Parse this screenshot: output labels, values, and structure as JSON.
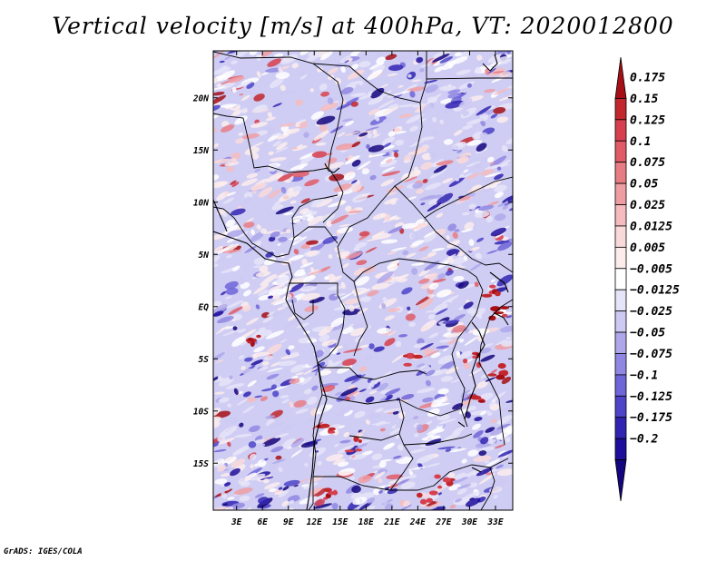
{
  "chart_data": {
    "type": "heatmap",
    "title": "Vertical velocity [m/s] at 400hPa, VT: 2020012800",
    "variable": "Vertical velocity",
    "units": "m/s",
    "level": "400hPa",
    "valid_time": "2020012800",
    "x_ticks": [
      "3E",
      "6E",
      "9E",
      "12E",
      "15E",
      "18E",
      "21E",
      "24E",
      "27E",
      "30E",
      "33E"
    ],
    "x_values": [
      3,
      6,
      9,
      12,
      15,
      18,
      21,
      24,
      27,
      30,
      33
    ],
    "y_ticks": [
      "20N",
      "15N",
      "10N",
      "5N",
      "EQ",
      "5S",
      "10S",
      "15S"
    ],
    "y_values": [
      20,
      15,
      10,
      5,
      0,
      -5,
      -10,
      -15
    ],
    "xlim": [
      0.3,
      35.0
    ],
    "ylim": [
      -19.5,
      24.5
    ],
    "colorbar": {
      "labels": [
        "0.175",
        "0.15",
        "0.125",
        "0.1",
        "0.075",
        "0.05",
        "0.025",
        "0.0125",
        "0.005",
        "−0.005",
        "−0.0125",
        "−0.025",
        "−0.05",
        "−0.075",
        "−0.1",
        "−0.125",
        "−0.175",
        "−0.2"
      ],
      "colors": [
        "#a50f15",
        "#c1272d",
        "#d6404e",
        "#e05b66",
        "#e77c84",
        "#ee9ea3",
        "#f4bcbf",
        "#f9d9da",
        "#fcecec",
        "#ffffff",
        "#e6e4f8",
        "#cdc9f2",
        "#aea8ea",
        "#8f87e2",
        "#6e65d8",
        "#4d44c8",
        "#3124b2",
        "#1e0f9b",
        "#14067e"
      ]
    },
    "background_color": "#cfcdf3"
  },
  "credit": "GrADS: IGES/COLA"
}
